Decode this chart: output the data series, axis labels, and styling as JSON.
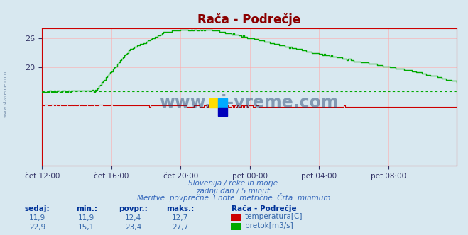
{
  "title": "Rača - Podrečje",
  "title_color": "#8b0000",
  "bg_color": "#d8e8f0",
  "plot_bg_color": "#d8e8f0",
  "grid_color": "#ffaaaa",
  "x_tick_labels": [
    "čet 12:00",
    "čet 16:00",
    "čet 20:00",
    "pet 00:00",
    "pet 04:00",
    "pet 08:00"
  ],
  "x_tick_positions": [
    0,
    48,
    96,
    144,
    192,
    240
  ],
  "total_points": 288,
  "tick_color": "#333366",
  "subtitle_line1": "Slovenija / reke in morje.",
  "subtitle_line2": "zadnji dan / 5 minut.",
  "subtitle_line3": "Meritve: povprečne  Enote: metrične  Črta: minmum",
  "subtitle_color": "#3366bb",
  "table_headers": [
    "sedaj:",
    "min.:",
    "povpr.:",
    "maks.:",
    "Rača - Podrečje"
  ],
  "table_row1": [
    "11,9",
    "11,9",
    "12,4",
    "12,7"
  ],
  "table_row2": [
    "22,9",
    "15,1",
    "23,4",
    "27,7"
  ],
  "label_temp": "temperatura[C]",
  "label_flow": "pretok[m3/s]",
  "color_temp": "#cc0000",
  "color_flow": "#00aa00",
  "ylim_min": 0,
  "ylim_max": 28,
  "yticks": [
    20,
    26
  ],
  "watermark_text": "www.si-vreme.com",
  "watermark_color": "#1a3a6a",
  "watermark_alpha": 0.45,
  "side_label": "www.si-vreme.com",
  "logo_yellow": "#ffdd00",
  "logo_cyan": "#00aaff",
  "logo_blue": "#0000bb",
  "spine_color": "#cc0000",
  "header_color": "#003399",
  "val_color": "#3366aa",
  "flow_min": 15.1,
  "temp_min": 11.9
}
